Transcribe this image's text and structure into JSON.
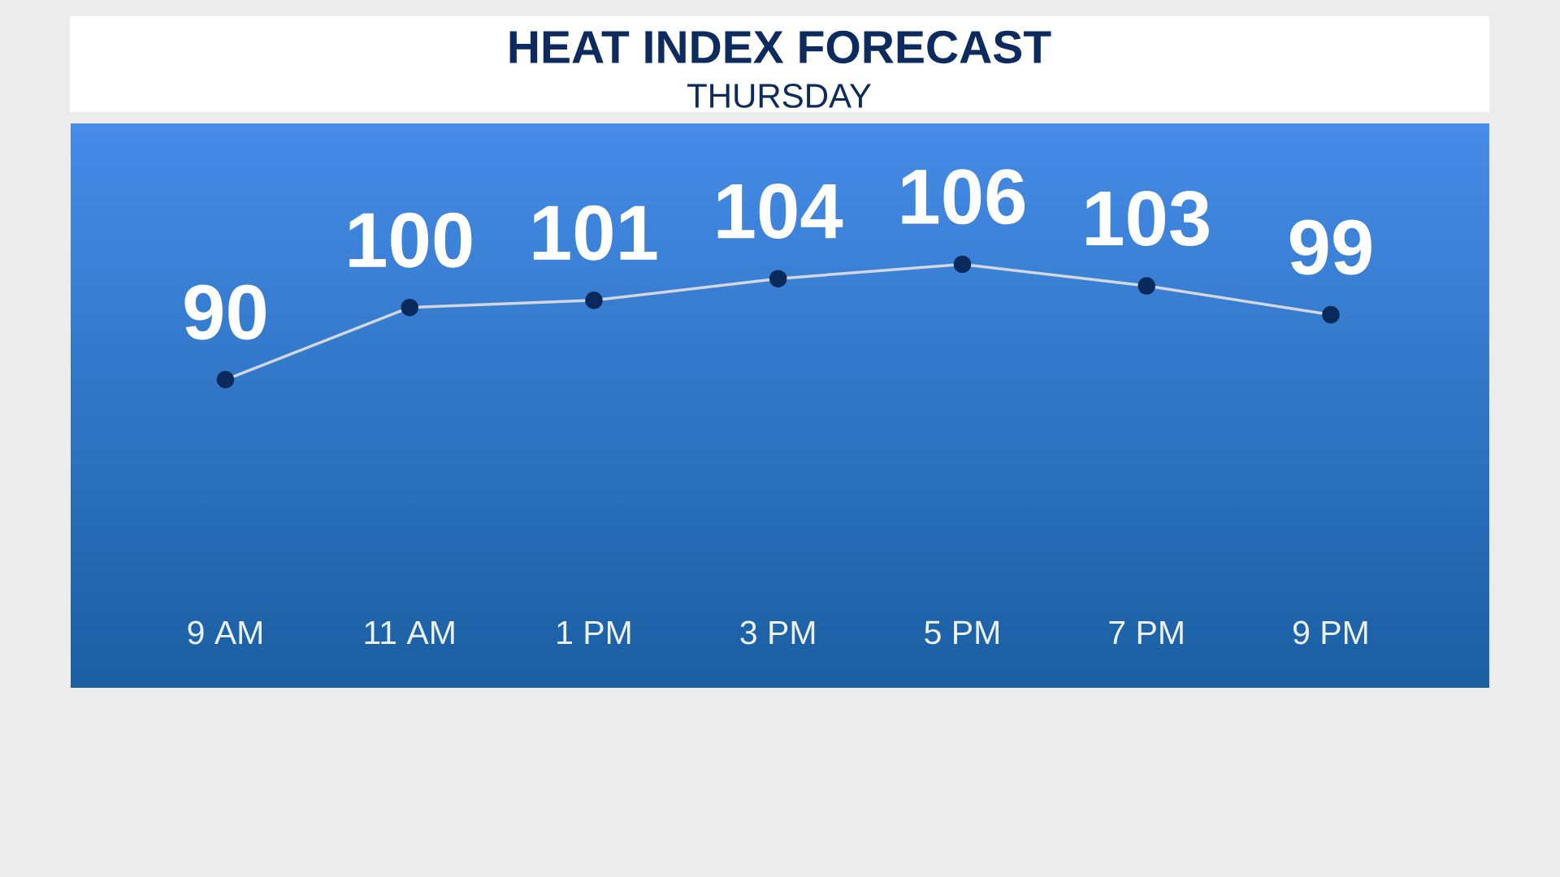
{
  "chart_data": {
    "type": "line",
    "title": "HEAT INDEX FORECAST",
    "subtitle": "THURSDAY",
    "categories": [
      "9 AM",
      "11 AM",
      "1 PM",
      "3 PM",
      "5 PM",
      "7 PM",
      "9 PM"
    ],
    "series": [
      {
        "color": "#d2d7de",
        "values": [
          90,
          100,
          101,
          104,
          106,
          103,
          99
        ]
      }
    ],
    "marker": "circle",
    "data_labels": true,
    "tick_labels": "x"
  }
}
